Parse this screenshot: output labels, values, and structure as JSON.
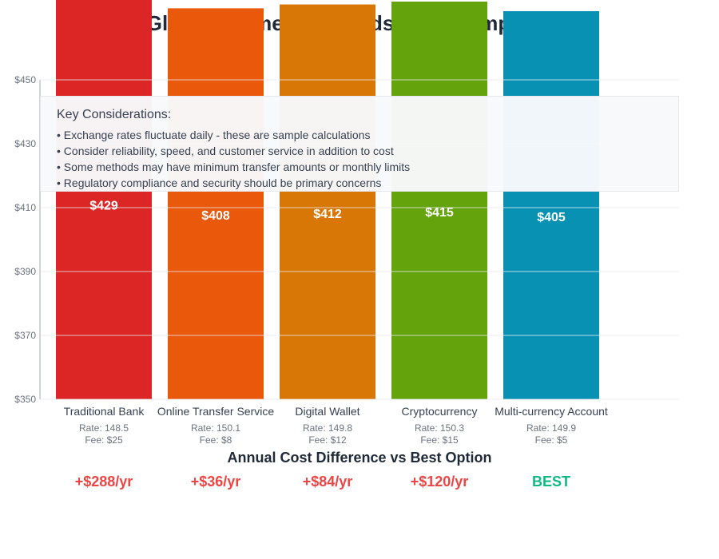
{
  "chart_data": {
    "type": "bar",
    "title": "Global Payment Methods Cost Comparison",
    "categories": [
      "Traditional Bank",
      "Online Transfer Service",
      "Digital Wallet",
      "Cryptocurrency",
      "Multi-currency Account"
    ],
    "values": [
      429,
      408,
      412,
      415,
      405
    ],
    "value_labels": [
      "$429",
      "$408",
      "$412",
      "$415",
      "$405"
    ],
    "colors": [
      "#dc2626",
      "#ea580c",
      "#d97706",
      "#65a30d",
      "#0891b2"
    ],
    "rates": [
      "Rate: 148.5",
      "Rate: 150.1",
      "Rate: 149.8",
      "Rate: 150.3",
      "Rate: 149.9"
    ],
    "fees": [
      "Fee: $25",
      "Fee: $8",
      "Fee: $12",
      "Fee: $15",
      "Fee: $5"
    ],
    "ylim": [
      350,
      450
    ],
    "yticks": [
      "$350",
      "$370",
      "$390",
      "$410",
      "$430",
      "$450"
    ],
    "grid": true
  },
  "key": {
    "heading": "Key Considerations:",
    "items": [
      "• Exchange rates fluctuate daily - these are sample calculations",
      "• Consider reliability, speed, and customer service in addition to cost",
      "• Some methods may have minimum transfer amounts or monthly limits",
      "• Regulatory compliance and security should be primary concerns"
    ]
  },
  "annual": {
    "title": "Annual Cost Difference vs Best Option",
    "values": [
      "+$288/yr",
      "+$36/yr",
      "+$84/yr",
      "+$120/yr",
      "BEST"
    ],
    "colors": {
      "worse": "#ef4444",
      "best": "#10b981"
    }
  }
}
